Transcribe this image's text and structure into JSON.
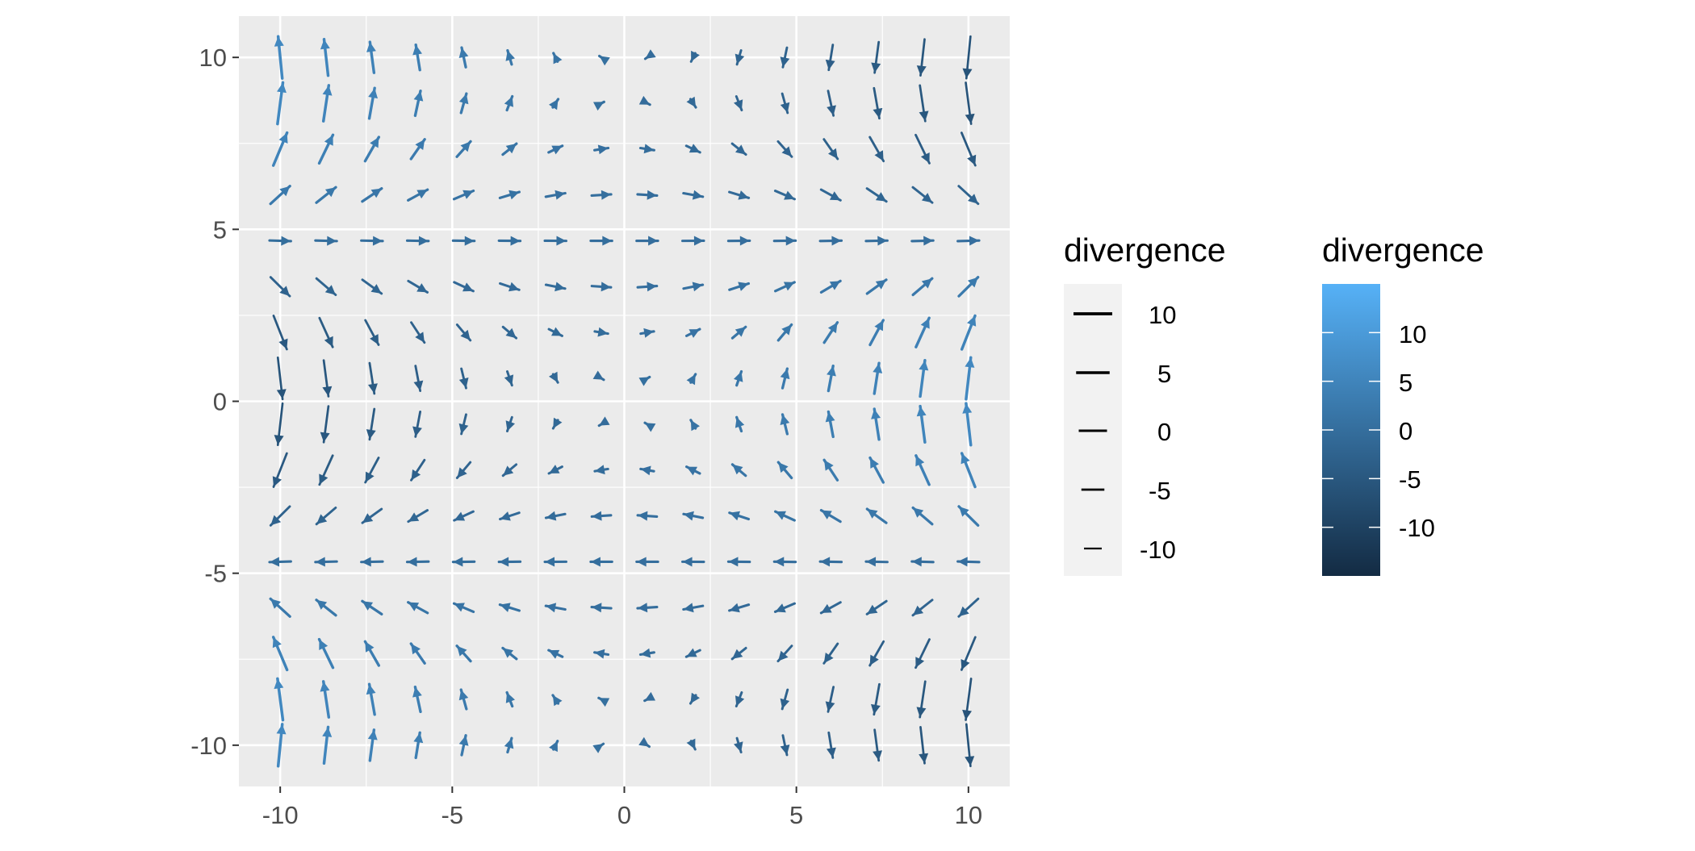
{
  "chart_data": {
    "type": "vector_field",
    "field": {
      "u": "sin(y/3)",
      "v": "x/5 * cos(y/3)"
    },
    "grid": {
      "x_from": -10,
      "x_to": 10,
      "y_from": -10,
      "y_to": 10,
      "n": 16
    },
    "color_var": "divergence",
    "xlim": [
      -11.2,
      11.2
    ],
    "ylim": [
      -11.2,
      11.2
    ],
    "x_ticks": [
      -10,
      -5,
      0,
      5,
      10
    ],
    "y_ticks": [
      -10,
      -5,
      0,
      5,
      10
    ],
    "x_tick_labels": [
      "-10",
      "-5",
      "0",
      "5",
      "10"
    ],
    "y_tick_labels": [
      "10",
      "5",
      "0",
      "-5",
      "-10"
    ],
    "grid_lines": true,
    "panel_background": "#ebebeb",
    "color_low": "#132b43",
    "color_high": "#56b1f7",
    "color_range": [
      -15,
      15
    ],
    "legends": [
      {
        "title": "divergence",
        "kind": "size",
        "labels": [
          "10",
          "5",
          "0",
          "-5",
          "-10"
        ],
        "values": [
          10,
          5,
          0,
          -5,
          -10
        ]
      },
      {
        "title": "divergence",
        "kind": "colorbar",
        "labels": [
          "10",
          "5",
          "0",
          "-5",
          "-10"
        ],
        "values": [
          10,
          5,
          0,
          -5,
          -10
        ]
      }
    ]
  }
}
